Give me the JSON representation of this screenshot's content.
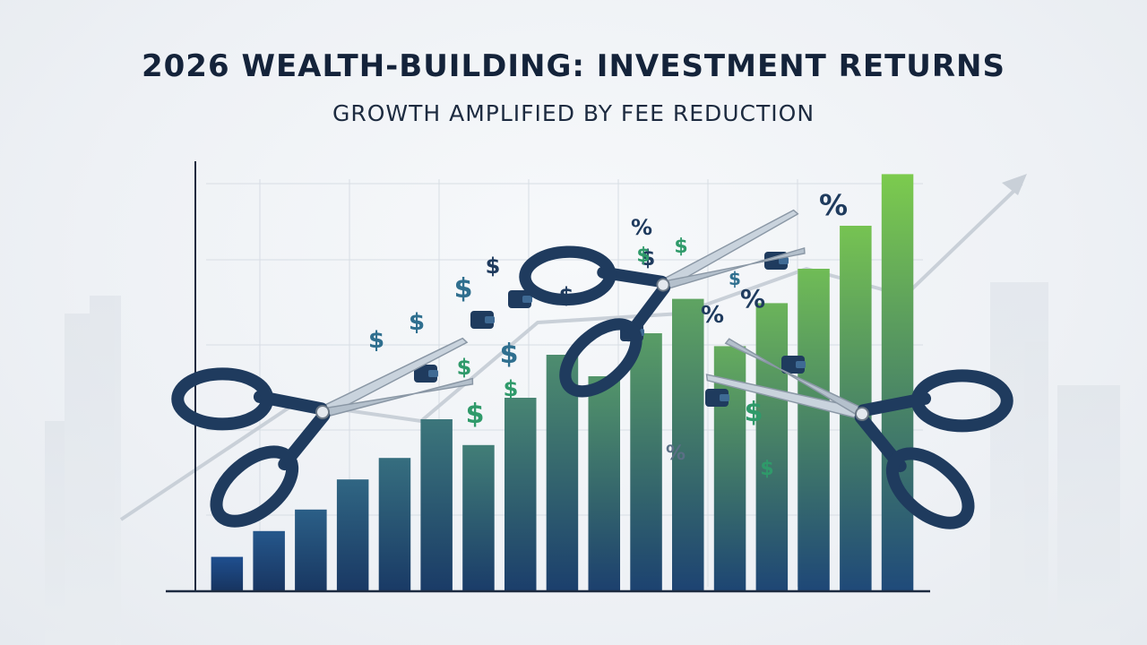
{
  "header": {
    "title": "2026 WEALTH-BUILDING: INVESTMENT RETURNS",
    "subtitle": "GROWTH AMPLIFIED BY FEE REDUCTION"
  },
  "colors": {
    "bar_low": "#1f4f8f",
    "bar_high": "#7ccb4e",
    "axis": "#1d2b40",
    "scissor_handle": "#1f3b5e",
    "blade": "#c9d3dd",
    "dollar_green": "#2f9a6a",
    "dollar_navy": "#1f3b5e"
  },
  "icons": [
    "scissors-icon",
    "dollar-sign-icon",
    "percent-icon",
    "wallet-icon",
    "trend-arrow-icon"
  ],
  "chart_data": {
    "type": "bar",
    "title": "2026 WEALTH-BUILDING: INVESTMENT RETURNS",
    "subtitle": "GROWTH AMPLIFIED BY FEE REDUCTION",
    "xlabel": "",
    "ylabel": "",
    "grid": true,
    "ylim": [
      0,
      100
    ],
    "values": [
      8,
      14,
      19,
      26,
      31,
      40,
      34,
      45,
      55,
      50,
      60,
      68,
      57,
      67,
      75,
      85,
      97
    ],
    "trend_arrow": true
  },
  "decor": {
    "scissors": [
      {
        "name": "scissors-left"
      },
      {
        "name": "scissors-top"
      },
      {
        "name": "scissors-right"
      }
    ],
    "symbols": [
      {
        "glyph": "$",
        "color": "#2f6f8f"
      },
      {
        "glyph": "$",
        "color": "#2f6f8f"
      },
      {
        "glyph": "$",
        "color": "#2f6f8f"
      },
      {
        "glyph": "$",
        "color": "#1f3b5e"
      },
      {
        "glyph": "$",
        "color": "#1f3b5e"
      },
      {
        "glyph": "$",
        "color": "#2f6f8f"
      },
      {
        "glyph": "$",
        "color": "#2f9a6a"
      },
      {
        "glyph": "%",
        "color": "#1f3b5e"
      },
      {
        "glyph": "%",
        "color": "#1f3b5e"
      },
      {
        "glyph": "%",
        "color": "#1f3b5e"
      },
      {
        "glyph": "$",
        "color": "#1f3b5e"
      },
      {
        "glyph": "$",
        "color": "#2f9a6a"
      },
      {
        "glyph": "$",
        "color": "#2f6f8f"
      },
      {
        "glyph": "$",
        "color": "#2f9a6a"
      },
      {
        "glyph": "$",
        "color": "#2f9a6a"
      },
      {
        "glyph": "$",
        "color": "#2f9a6a"
      },
      {
        "glyph": "%",
        "color": "#1f3b5e"
      },
      {
        "glyph": "$",
        "color": "#2f9a6a"
      },
      {
        "glyph": "$",
        "color": "#2f9a6a"
      },
      {
        "glyph": "%",
        "color": "#5a6f85"
      },
      {
        "glyph": "$",
        "color": "#5a6f85"
      }
    ]
  }
}
